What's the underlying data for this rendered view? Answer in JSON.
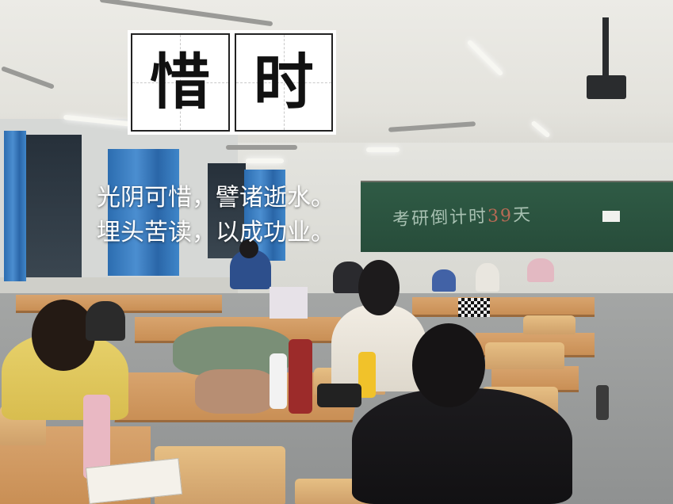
{
  "title": {
    "char_1": "惜",
    "char_2": "时"
  },
  "poem": {
    "line_1": "光阴可惜，譬诸逝水。",
    "line_2": "埋头苦读，以成功业。"
  },
  "blackboard": {
    "text": "考研倒计时",
    "number": "39",
    "unit": "天"
  },
  "colors": {
    "curtain": "#3a7ec2",
    "blackboard": "#2c5641",
    "desk": "#d29a62",
    "title_card": "#ffffff"
  }
}
